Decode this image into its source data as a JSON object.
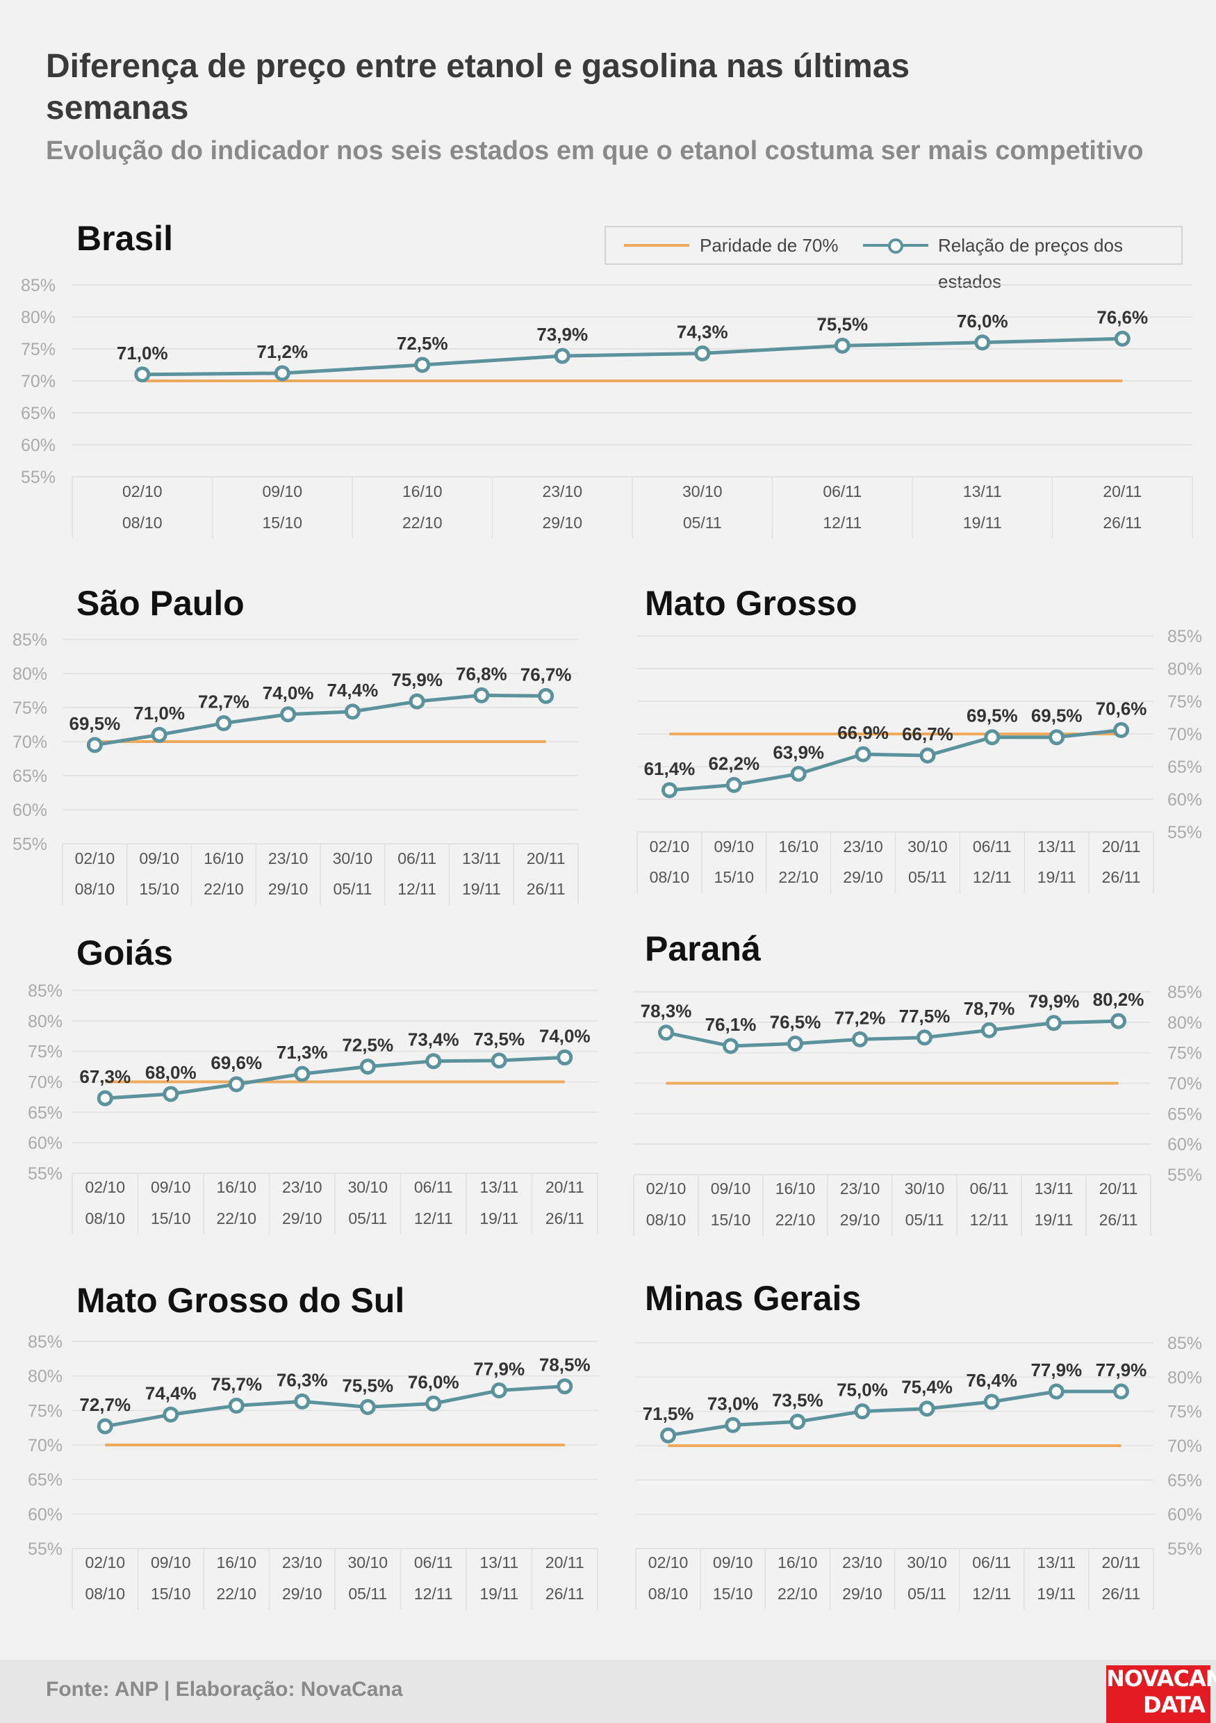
{
  "header": {
    "title": "Diferença de preço entre etanol e gasolina nas últimas semanas",
    "subtitle": "Evolução do indicador nos seis estados em que o etanol costuma ser mais competitivo"
  },
  "legend": {
    "parity_label": "Paridade de 70%",
    "series_label": "Relação de preços dos estados"
  },
  "colors": {
    "parity": "#eeaa5c",
    "series": "#5b929c",
    "grid": "#e0e0e0",
    "axis_text": "#aaaaaa"
  },
  "footer": {
    "source": "Fonte: ANP | Elaboração: NovaCana",
    "logo_top": "NOVACANA",
    "logo_bottom": "DATA"
  },
  "chart_data": [
    {
      "type": "line",
      "title": "Brasil",
      "x_start": [
        "02/10",
        "09/10",
        "16/10",
        "23/10",
        "30/10",
        "06/11",
        "13/11",
        "20/11"
      ],
      "x_end": [
        "08/10",
        "15/10",
        "22/10",
        "29/10",
        "05/11",
        "12/11",
        "19/11",
        "26/11"
      ],
      "series": [
        {
          "name": "Relação de preços dos estados",
          "values": [
            71.0,
            71.2,
            72.5,
            73.9,
            74.3,
            75.5,
            76.0,
            76.6
          ],
          "labels": [
            "71,0%",
            "71,2%",
            "72,5%",
            "73,9%",
            "74,3%",
            "75,5%",
            "76,0%",
            "76,6%"
          ]
        },
        {
          "name": "Paridade de 70%",
          "values": [
            70,
            70,
            70,
            70,
            70,
            70,
            70,
            70
          ]
        }
      ],
      "yticks": [
        "85%",
        "80%",
        "75%",
        "70%",
        "65%",
        "60%",
        "55%"
      ],
      "ylim": [
        55,
        85
      ],
      "y_axis_side": "left"
    },
    {
      "type": "line",
      "title": "São Paulo",
      "x_start": [
        "02/10",
        "09/10",
        "16/10",
        "23/10",
        "30/10",
        "06/11",
        "13/11",
        "20/11"
      ],
      "x_end": [
        "08/10",
        "15/10",
        "22/10",
        "29/10",
        "05/11",
        "12/11",
        "19/11",
        "26/11"
      ],
      "series": [
        {
          "name": "Relação de preços dos estados",
          "values": [
            69.5,
            71.0,
            72.7,
            74.0,
            74.4,
            75.9,
            76.8,
            76.7
          ],
          "labels": [
            "69,5%",
            "71,0%",
            "72,7%",
            "74,0%",
            "74,4%",
            "75,9%",
            "76,8%",
            "76,7%"
          ]
        },
        {
          "name": "Paridade de 70%",
          "values": [
            70,
            70,
            70,
            70,
            70,
            70,
            70,
            70
          ]
        }
      ],
      "yticks": [
        "85%",
        "80%",
        "75%",
        "70%",
        "65%",
        "60%",
        "55%"
      ],
      "ylim": [
        55,
        85
      ],
      "y_axis_side": "left"
    },
    {
      "type": "line",
      "title": "Mato Grosso",
      "x_start": [
        "02/10",
        "09/10",
        "16/10",
        "23/10",
        "30/10",
        "06/11",
        "13/11",
        "20/11"
      ],
      "x_end": [
        "08/10",
        "15/10",
        "22/10",
        "29/10",
        "05/11",
        "12/11",
        "19/11",
        "26/11"
      ],
      "series": [
        {
          "name": "Relação de preços dos estados",
          "values": [
            61.4,
            62.2,
            63.9,
            66.9,
            66.7,
            69.5,
            69.5,
            70.6
          ],
          "labels": [
            "61,4%",
            "62,2%",
            "63,9%",
            "66,9%",
            "66,7%",
            "69,5%",
            "69,5%",
            "70,6%"
          ]
        },
        {
          "name": "Paridade de 70%",
          "values": [
            70,
            70,
            70,
            70,
            70,
            70,
            70,
            70
          ]
        }
      ],
      "yticks": [
        "85%",
        "80%",
        "75%",
        "70%",
        "65%",
        "60%",
        "55%"
      ],
      "ylim": [
        55,
        85
      ],
      "y_axis_side": "right"
    },
    {
      "type": "line",
      "title": "Goiás",
      "x_start": [
        "02/10",
        "09/10",
        "16/10",
        "23/10",
        "30/10",
        "06/11",
        "13/11",
        "20/11"
      ],
      "x_end": [
        "08/10",
        "15/10",
        "22/10",
        "29/10",
        "05/11",
        "12/11",
        "19/11",
        "26/11"
      ],
      "series": [
        {
          "name": "Relação de preços dos estados",
          "values": [
            67.3,
            68.0,
            69.6,
            71.3,
            72.5,
            73.4,
            73.5,
            74.0
          ],
          "labels": [
            "67,3%",
            "68,0%",
            "69,6%",
            "71,3%",
            "72,5%",
            "73,4%",
            "73,5%",
            "74,0%"
          ]
        },
        {
          "name": "Paridade de 70%",
          "values": [
            70,
            70,
            70,
            70,
            70,
            70,
            70,
            70
          ]
        }
      ],
      "yticks": [
        "85%",
        "80%",
        "75%",
        "70%",
        "65%",
        "60%",
        "55%"
      ],
      "ylim": [
        55,
        85
      ],
      "y_axis_side": "left"
    },
    {
      "type": "line",
      "title": "Paraná",
      "x_start": [
        "02/10",
        "09/10",
        "16/10",
        "23/10",
        "30/10",
        "06/11",
        "13/11",
        "20/11"
      ],
      "x_end": [
        "08/10",
        "15/10",
        "22/10",
        "29/10",
        "05/11",
        "12/11",
        "19/11",
        "26/11"
      ],
      "series": [
        {
          "name": "Relação de preços dos estados",
          "values": [
            78.3,
            76.1,
            76.5,
            77.2,
            77.5,
            78.7,
            79.9,
            80.2
          ],
          "labels": [
            "78,3%",
            "76,1%",
            "76,5%",
            "77,2%",
            "77,5%",
            "78,7%",
            "79,9%",
            "80,2%"
          ]
        },
        {
          "name": "Paridade de 70%",
          "values": [
            70,
            70,
            70,
            70,
            70,
            70,
            70,
            70
          ]
        }
      ],
      "yticks": [
        "85%",
        "80%",
        "75%",
        "70%",
        "65%",
        "60%",
        "55%"
      ],
      "ylim": [
        55,
        85
      ],
      "y_axis_side": "right"
    },
    {
      "type": "line",
      "title": "Mato Grosso do Sul",
      "x_start": [
        "02/10",
        "09/10",
        "16/10",
        "23/10",
        "30/10",
        "06/11",
        "13/11",
        "20/11"
      ],
      "x_end": [
        "08/10",
        "15/10",
        "22/10",
        "29/10",
        "05/11",
        "12/11",
        "19/11",
        "26/11"
      ],
      "series": [
        {
          "name": "Relação de preços dos estados",
          "values": [
            72.7,
            74.4,
            75.7,
            76.3,
            75.5,
            76.0,
            77.9,
            78.5
          ],
          "labels": [
            "72,7%",
            "74,4%",
            "75,7%",
            "76,3%",
            "75,5%",
            "76,0%",
            "77,9%",
            "78,5%"
          ]
        },
        {
          "name": "Paridade de 70%",
          "values": [
            70,
            70,
            70,
            70,
            70,
            70,
            70,
            70
          ]
        }
      ],
      "yticks": [
        "85%",
        "80%",
        "75%",
        "70%",
        "65%",
        "60%",
        "55%"
      ],
      "ylim": [
        55,
        85
      ],
      "y_axis_side": "left"
    },
    {
      "type": "line",
      "title": "Minas Gerais",
      "x_start": [
        "02/10",
        "09/10",
        "16/10",
        "23/10",
        "30/10",
        "06/11",
        "13/11",
        "20/11"
      ],
      "x_end": [
        "08/10",
        "15/10",
        "22/10",
        "29/10",
        "05/11",
        "12/11",
        "19/11",
        "26/11"
      ],
      "series": [
        {
          "name": "Relação de preços dos estados",
          "values": [
            71.5,
            73.0,
            73.5,
            75.0,
            75.4,
            76.4,
            77.9,
            77.9
          ],
          "labels": [
            "71,5%",
            "73,0%",
            "73,5%",
            "75,0%",
            "75,4%",
            "76,4%",
            "77,9%",
            "77,9%"
          ]
        },
        {
          "name": "Paridade de 70%",
          "values": [
            70,
            70,
            70,
            70,
            70,
            70,
            70,
            70
          ]
        }
      ],
      "yticks": [
        "85%",
        "80%",
        "75%",
        "70%",
        "65%",
        "60%",
        "55%"
      ],
      "ylim": [
        55,
        85
      ],
      "y_axis_side": "right"
    }
  ]
}
